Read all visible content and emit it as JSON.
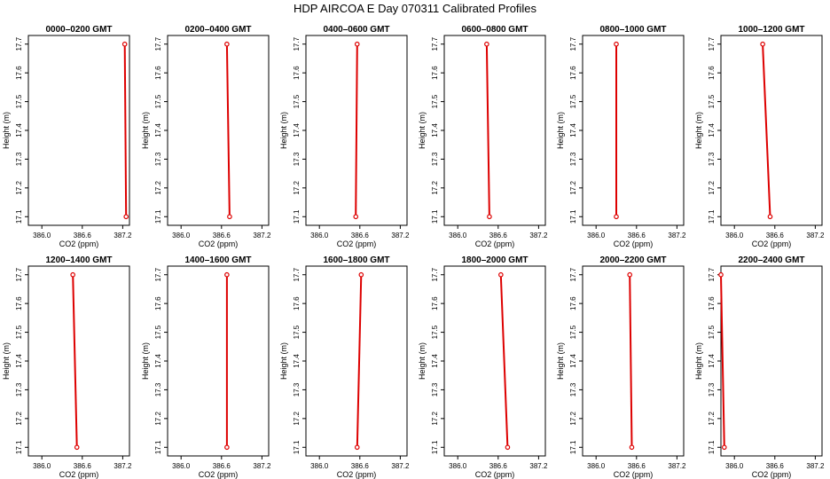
{
  "title": "HDP  AIRCOA E  Day 070311  Calibrated Profiles",
  "colors": {
    "line": "#dd0000",
    "point": "#dd0000",
    "axis": "#000000",
    "background": "#ffffff"
  },
  "chart_data": [
    {
      "type": "line",
      "title": "0000–0200 GMT",
      "xlabel": "CO2 (ppm)",
      "ylabel": "Height (m)",
      "xlim": [
        385.8,
        387.3
      ],
      "ylim": [
        17.07,
        17.73
      ],
      "xticks": [
        "386.0",
        "386.6",
        "387.2"
      ],
      "yticks": [
        "17.1",
        "17.2",
        "17.3",
        "17.4",
        "17.5",
        "17.6",
        "17.7"
      ],
      "x": [
        387.23,
        387.25
      ],
      "y": [
        17.7,
        17.1
      ]
    },
    {
      "type": "line",
      "title": "0200–0400 GMT",
      "xlabel": "CO2 (ppm)",
      "ylabel": "Height (m)",
      "xlim": [
        385.8,
        387.3
      ],
      "ylim": [
        17.07,
        17.73
      ],
      "xticks": [
        "386.0",
        "386.6",
        "387.2"
      ],
      "yticks": [
        "17.1",
        "17.2",
        "17.3",
        "17.4",
        "17.5",
        "17.6",
        "17.7"
      ],
      "x": [
        386.68,
        386.72
      ],
      "y": [
        17.7,
        17.1
      ]
    },
    {
      "type": "line",
      "title": "0400–0600 GMT",
      "xlabel": "CO2 (ppm)",
      "ylabel": "Height (m)",
      "xlim": [
        385.8,
        387.3
      ],
      "ylim": [
        17.07,
        17.73
      ],
      "xticks": [
        "386.0",
        "386.6",
        "387.2"
      ],
      "yticks": [
        "17.1",
        "17.2",
        "17.3",
        "17.4",
        "17.5",
        "17.6",
        "17.7"
      ],
      "x": [
        386.56,
        386.54
      ],
      "y": [
        17.7,
        17.1
      ]
    },
    {
      "type": "line",
      "title": "0600–0800 GMT",
      "xlabel": "CO2 (ppm)",
      "ylabel": "Height (m)",
      "xlim": [
        385.8,
        387.3
      ],
      "ylim": [
        17.07,
        17.73
      ],
      "xticks": [
        "386.0",
        "386.6",
        "387.2"
      ],
      "yticks": [
        "17.1",
        "17.2",
        "17.3",
        "17.4",
        "17.5",
        "17.6",
        "17.7"
      ],
      "x": [
        386.43,
        386.47
      ],
      "y": [
        17.7,
        17.1
      ]
    },
    {
      "type": "line",
      "title": "0800–1000 GMT",
      "xlabel": "CO2 (ppm)",
      "ylabel": "Height (m)",
      "xlim": [
        385.8,
        387.3
      ],
      "ylim": [
        17.07,
        17.73
      ],
      "xticks": [
        "386.0",
        "386.6",
        "387.2"
      ],
      "yticks": [
        "17.1",
        "17.2",
        "17.3",
        "17.4",
        "17.5",
        "17.6",
        "17.7"
      ],
      "x": [
        386.3,
        386.3
      ],
      "y": [
        17.7,
        17.1
      ]
    },
    {
      "type": "line",
      "title": "1000–1200 GMT",
      "xlabel": "CO2 (ppm)",
      "ylabel": "Height (m)",
      "xlim": [
        385.8,
        387.3
      ],
      "ylim": [
        17.07,
        17.73
      ],
      "xticks": [
        "386.0",
        "386.6",
        "387.2"
      ],
      "yticks": [
        "17.1",
        "17.2",
        "17.3",
        "17.4",
        "17.5",
        "17.6",
        "17.7"
      ],
      "x": [
        386.42,
        386.53
      ],
      "y": [
        17.7,
        17.1
      ]
    },
    {
      "type": "line",
      "title": "1200–1400 GMT",
      "xlabel": "CO2 (ppm)",
      "ylabel": "Height (m)",
      "xlim": [
        385.8,
        387.3
      ],
      "ylim": [
        17.07,
        17.73
      ],
      "xticks": [
        "386.0",
        "386.6",
        "387.2"
      ],
      "yticks": [
        "17.1",
        "17.2",
        "17.3",
        "17.4",
        "17.5",
        "17.6",
        "17.7"
      ],
      "x": [
        386.46,
        386.52
      ],
      "y": [
        17.7,
        17.1
      ]
    },
    {
      "type": "line",
      "title": "1400–1600 GMT",
      "xlabel": "CO2 (ppm)",
      "ylabel": "Height (m)",
      "xlim": [
        385.8,
        387.3
      ],
      "ylim": [
        17.07,
        17.73
      ],
      "xticks": [
        "386.0",
        "386.6",
        "387.2"
      ],
      "yticks": [
        "17.1",
        "17.2",
        "17.3",
        "17.4",
        "17.5",
        "17.6",
        "17.7"
      ],
      "x": [
        386.68,
        386.68
      ],
      "y": [
        17.7,
        17.1
      ]
    },
    {
      "type": "line",
      "title": "1600–1800 GMT",
      "xlabel": "CO2 (ppm)",
      "ylabel": "Height (m)",
      "xlim": [
        385.8,
        387.3
      ],
      "ylim": [
        17.07,
        17.73
      ],
      "xticks": [
        "386.0",
        "386.6",
        "387.2"
      ],
      "yticks": [
        "17.1",
        "17.2",
        "17.3",
        "17.4",
        "17.5",
        "17.6",
        "17.7"
      ],
      "x": [
        386.62,
        386.56
      ],
      "y": [
        17.7,
        17.1
      ]
    },
    {
      "type": "line",
      "title": "1800–2000 GMT",
      "xlabel": "CO2 (ppm)",
      "ylabel": "Height (m)",
      "xlim": [
        385.8,
        387.3
      ],
      "ylim": [
        17.07,
        17.73
      ],
      "xticks": [
        "386.0",
        "386.6",
        "387.2"
      ],
      "yticks": [
        "17.1",
        "17.2",
        "17.3",
        "17.4",
        "17.5",
        "17.6",
        "17.7"
      ],
      "x": [
        386.64,
        386.74
      ],
      "y": [
        17.7,
        17.1
      ]
    },
    {
      "type": "line",
      "title": "2000–2200 GMT",
      "xlabel": "CO2 (ppm)",
      "ylabel": "Height (m)",
      "xlim": [
        385.8,
        387.3
      ],
      "ylim": [
        17.07,
        17.73
      ],
      "xticks": [
        "386.0",
        "386.6",
        "387.2"
      ],
      "yticks": [
        "17.1",
        "17.2",
        "17.3",
        "17.4",
        "17.5",
        "17.6",
        "17.7"
      ],
      "x": [
        386.5,
        386.53
      ],
      "y": [
        17.7,
        17.1
      ]
    },
    {
      "type": "line",
      "title": "2200–2400 GMT",
      "xlabel": "CO2 (ppm)",
      "ylabel": "Height (m)",
      "xlim": [
        385.8,
        387.3
      ],
      "ylim": [
        17.07,
        17.73
      ],
      "xticks": [
        "386.0",
        "386.6",
        "387.2"
      ],
      "yticks": [
        "17.1",
        "17.2",
        "17.3",
        "17.4",
        "17.5",
        "17.6",
        "17.7"
      ],
      "x": [
        385.8,
        385.85
      ],
      "y": [
        17.7,
        17.1
      ]
    }
  ]
}
